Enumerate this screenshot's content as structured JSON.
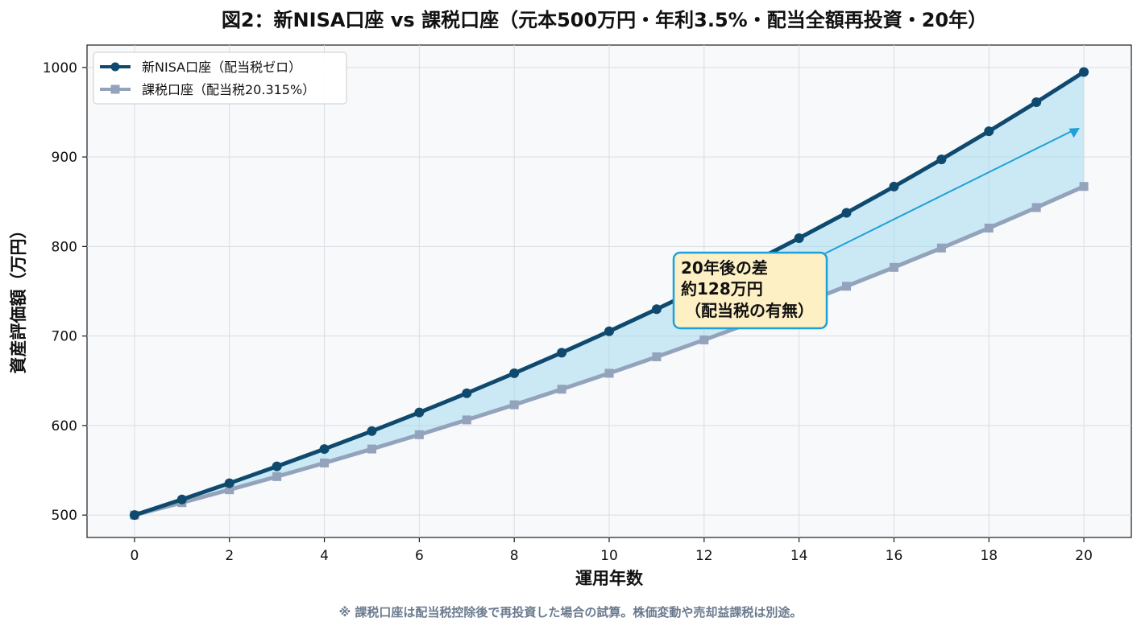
{
  "chart_data": {
    "type": "line",
    "title": "図2：新NISA口座 vs 課税口座（元本500万円・年利3.5%・配当全額再投資・20年）",
    "xlabel": "運用年数",
    "ylabel": "資産評価額（万円）",
    "xlim": [
      -1,
      21
    ],
    "ylim": [
      475,
      1025
    ],
    "xticks": [
      0,
      2,
      4,
      6,
      8,
      10,
      12,
      14,
      16,
      18,
      20
    ],
    "yticks": [
      500,
      600,
      700,
      800,
      900,
      1000
    ],
    "grid": true,
    "legend_position": "top-left",
    "x": [
      0,
      1,
      2,
      3,
      4,
      5,
      6,
      7,
      8,
      9,
      10,
      11,
      12,
      13,
      14,
      15,
      16,
      17,
      18,
      19,
      20
    ],
    "series": [
      {
        "name": "新NISA口座（配当税ゼロ）",
        "color": "#0f4a6e",
        "marker": "circle",
        "values": [
          500,
          517.5,
          535.6,
          554.4,
          573.8,
          593.8,
          614.6,
          636.1,
          658.4,
          681.4,
          705.3,
          730.0,
          755.5,
          781.9,
          809.3,
          837.6,
          866.9,
          897.3,
          928.7,
          961.2,
          994.9
        ]
      },
      {
        "name": "課税口座（配当税20.315%）",
        "color": "#93a3bb",
        "marker": "square",
        "values": [
          500,
          513.9,
          528.3,
          543.0,
          558.2,
          573.8,
          589.8,
          606.3,
          623.2,
          640.6,
          658.4,
          676.8,
          695.7,
          715.1,
          735.1,
          755.6,
          776.7,
          798.3,
          820.6,
          843.5,
          867.1
        ]
      }
    ],
    "fill_between_color": "#9fd8f0",
    "annotation": {
      "lines": [
        "20年後の差",
        "約128万円",
        "（配当税の有無）"
      ],
      "box_color": "#fdf0c4",
      "border_color": "#1ea0d8",
      "arrow_color": "#1ea0d8",
      "arrow_target": [
        20,
        930
      ]
    },
    "footnote": "※ 課税口座は配当税控除後で再投資した場合の試算。株価変動や売却益課税は別途。"
  }
}
